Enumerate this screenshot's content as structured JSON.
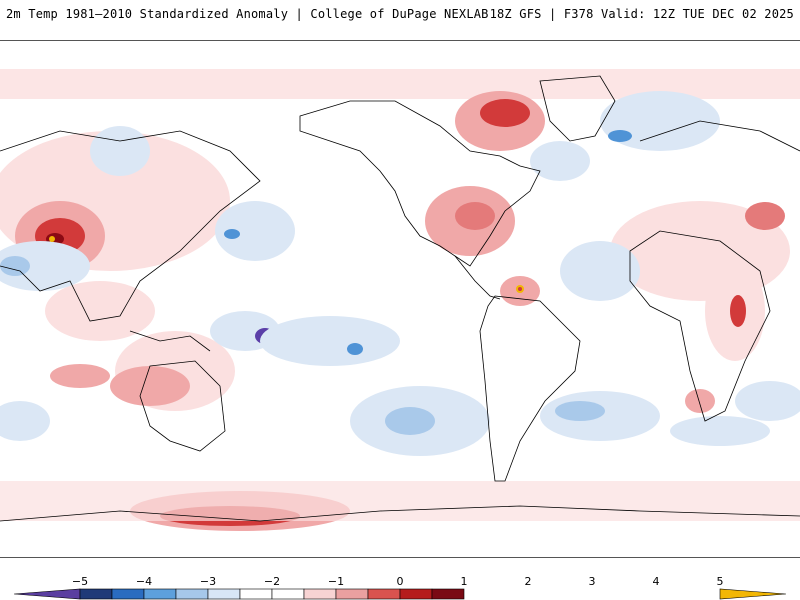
{
  "header": {
    "left_title": "2m Temp 1981–2010 Standardized Anomaly | College of DuPage NEXLAB",
    "right_title": "18Z GFS | F378 Valid: 12Z TUE DEC 02 2025"
  },
  "colorbar": {
    "ticks": [
      "−5",
      "−4",
      "−3",
      "−2",
      "−1",
      "0",
      "1",
      "2",
      "3",
      "4",
      "5"
    ],
    "colors": [
      "#5a3ea0",
      "#1f3a78",
      "#2a6cc0",
      "#5da0dc",
      "#a6c8ea",
      "#d8e6f6",
      "#ffffff",
      "#ffffff",
      "#f7d3d3",
      "#eaa0a0",
      "#d9534f",
      "#b51c1c",
      "#7a0a14",
      "#f2b705"
    ]
  },
  "map": {
    "projection": "global equirectangular, centered on Pacific",
    "colors": {
      "warm_light": "#fbe0e0",
      "warm_mid": "#f0a8a8",
      "warm_strong": "#d23a3a",
      "warm_extreme": "#8b0a14",
      "cool_light": "#dbe7f5",
      "cool_mid": "#a9c9ea",
      "cool_strong": "#4f93d6",
      "cool_extreme": "#5b3fa8",
      "coast": "#000000"
    }
  }
}
